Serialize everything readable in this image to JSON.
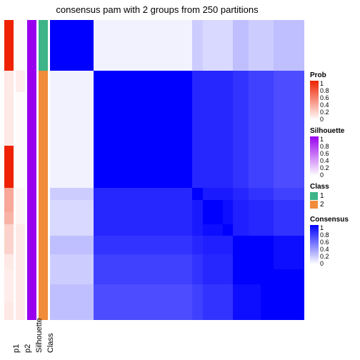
{
  "title": "consensus pam with 2 groups from 250 partitions",
  "annotation_columns": [
    "p1",
    "p2",
    "Silhouette",
    "Class"
  ],
  "row_heights": [
    0.17,
    0.07,
    0.18,
    0.14,
    0.04,
    0.04,
    0.04,
    0.04,
    0.06,
    0.05,
    0.05,
    0.06,
    0.06
  ],
  "anno_values": {
    "p1": [
      1.0,
      0.1,
      0.1,
      1.0,
      0.4,
      0.4,
      0.35,
      0.2,
      0.2,
      0.1,
      0.08,
      0.08,
      0.1
    ],
    "p2": [
      0.02,
      0.08,
      0.02,
      0.02,
      0.05,
      0.05,
      0.05,
      0.1,
      0.1,
      0.1,
      0.1,
      0.1,
      0.1
    ],
    "Silhouette": [
      1.0,
      1.0,
      1.0,
      1.0,
      1.0,
      1.0,
      1.0,
      1.0,
      1.0,
      1.0,
      1.0,
      1.0,
      1.0
    ],
    "Class": [
      1,
      2,
      2,
      2,
      2,
      2,
      2,
      2,
      2,
      2,
      2,
      2,
      2
    ]
  },
  "consensus_matrix": [
    [
      1.0,
      0.05,
      0.05,
      0.05,
      0.2,
      0.15,
      0.15,
      0.15,
      0.25,
      0.2,
      0.2,
      0.25,
      0.25
    ],
    [
      0.05,
      1.0,
      1.0,
      1.0,
      0.85,
      0.85,
      0.85,
      0.85,
      0.8,
      0.75,
      0.75,
      0.7,
      0.7
    ],
    [
      0.05,
      1.0,
      1.0,
      1.0,
      0.85,
      0.85,
      0.85,
      0.85,
      0.8,
      0.75,
      0.75,
      0.7,
      0.7
    ],
    [
      0.05,
      1.0,
      1.0,
      1.0,
      0.85,
      0.85,
      0.85,
      0.85,
      0.8,
      0.75,
      0.75,
      0.7,
      0.7
    ],
    [
      0.2,
      0.85,
      0.85,
      0.85,
      1.0,
      0.9,
      0.9,
      0.9,
      0.85,
      0.8,
      0.8,
      0.75,
      0.75
    ],
    [
      0.15,
      0.85,
      0.85,
      0.85,
      0.9,
      1.0,
      1.0,
      0.95,
      0.88,
      0.85,
      0.85,
      0.8,
      0.8
    ],
    [
      0.15,
      0.85,
      0.85,
      0.85,
      0.9,
      1.0,
      1.0,
      0.95,
      0.88,
      0.85,
      0.85,
      0.8,
      0.8
    ],
    [
      0.15,
      0.85,
      0.85,
      0.85,
      0.9,
      0.95,
      0.95,
      1.0,
      0.88,
      0.85,
      0.85,
      0.8,
      0.8
    ],
    [
      0.25,
      0.8,
      0.8,
      0.8,
      0.85,
      0.88,
      0.88,
      0.88,
      1.0,
      1.0,
      1.0,
      0.95,
      0.95
    ],
    [
      0.2,
      0.75,
      0.75,
      0.75,
      0.8,
      0.85,
      0.85,
      0.85,
      1.0,
      1.0,
      1.0,
      0.95,
      0.95
    ],
    [
      0.2,
      0.75,
      0.75,
      0.75,
      0.8,
      0.85,
      0.85,
      0.85,
      1.0,
      1.0,
      1.0,
      1.0,
      1.0
    ],
    [
      0.25,
      0.7,
      0.7,
      0.7,
      0.75,
      0.8,
      0.8,
      0.8,
      0.95,
      0.95,
      1.0,
      1.0,
      1.0
    ],
    [
      0.25,
      0.7,
      0.7,
      0.7,
      0.75,
      0.8,
      0.8,
      0.8,
      0.95,
      0.95,
      1.0,
      1.0,
      1.0
    ]
  ],
  "legends": {
    "Prob": {
      "type": "gradient",
      "low_color": "#ffffff",
      "high_color": "#ee2200",
      "ticks": [
        "0",
        "0.2",
        "0.4",
        "0.6",
        "0.8",
        "1"
      ]
    },
    "Silhouette": {
      "type": "gradient",
      "low_color": "#ffffff",
      "high_color": "#9900ee",
      "ticks": [
        "0",
        "0.2",
        "0.4",
        "0.6",
        "0.8",
        "1"
      ]
    },
    "Class": {
      "type": "discrete",
      "items": [
        {
          "label": "1",
          "color": "#3eb489"
        },
        {
          "label": "2",
          "color": "#f08c3a"
        }
      ]
    },
    "Consensus": {
      "type": "gradient",
      "low_color": "#ffffff",
      "high_color": "#0000ff",
      "ticks": [
        "0",
        "0.2",
        "0.4",
        "0.6",
        "0.8",
        "1"
      ]
    }
  },
  "colors": {
    "prob_low": "#ffffff",
    "prob_high": "#ee2200",
    "sil_low": "#ffffff",
    "sil_high": "#9900ee",
    "class_1": "#3eb489",
    "class_2": "#f08c3a",
    "cons_low": "#ffffff",
    "cons_high": "#0000ff"
  },
  "fontsize_title": 13,
  "fontsize_labels": 11,
  "fontsize_legend": 10
}
